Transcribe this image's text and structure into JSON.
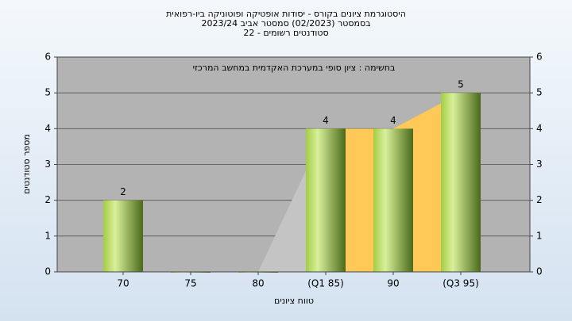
{
  "chart_data": {
    "type": "bar",
    "title_lines": [
      "היסטוגרמת ציונים בקורס - יסודות אופטיקה ופוטוניקה ביו-רפואית",
      "בסמסטר  (02/2023)  סמסטר אביב 2023/24",
      "סטודנטים רשומים - 22"
    ],
    "annotation": "בחשימה : ציון סופי במערכת האקדמית במחשב המרכזי",
    "x_label": "טווח ציונים",
    "y_label": "מספר סטודנטים",
    "categories": [
      "70",
      "75",
      "80",
      "(Q1 85)",
      "90",
      "(Q3 95)"
    ],
    "values": [
      2,
      0,
      0,
      4,
      4,
      5
    ],
    "value_labels": [
      "2",
      null,
      null,
      "4",
      "4",
      "5"
    ],
    "areas": [
      {
        "color": "#c4c4c4",
        "values": [
          null,
          null,
          0,
          4,
          null,
          null
        ]
      },
      {
        "color": "#ffc957",
        "values": [
          null,
          null,
          null,
          4,
          4,
          5
        ]
      }
    ],
    "ylim": [
      0,
      6
    ],
    "yticks": [
      0,
      1,
      2,
      3,
      4,
      5,
      6
    ],
    "y2ticks": [
      0,
      1,
      2,
      3,
      4,
      5,
      6
    ],
    "grid": true
  }
}
